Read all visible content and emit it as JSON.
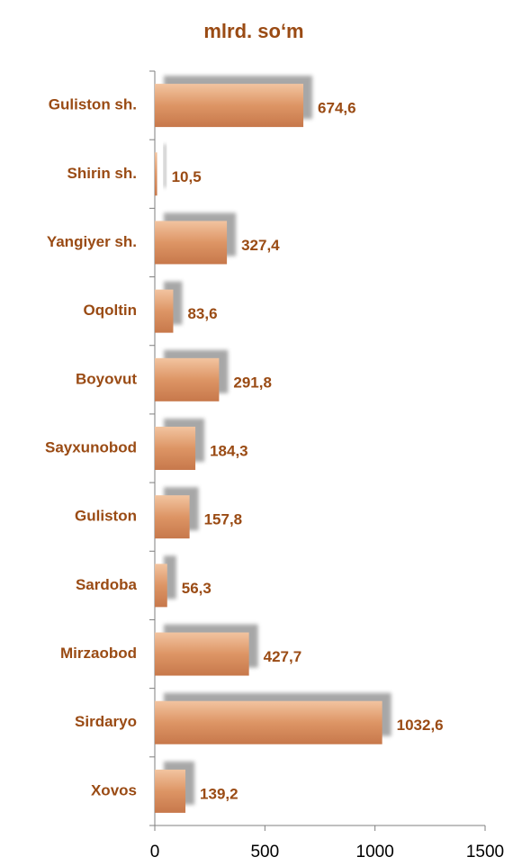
{
  "chart_data": {
    "type": "bar",
    "orientation": "horizontal",
    "title": "mlrd. so‘m",
    "categories": [
      "Guliston sh.",
      "Shirin sh.",
      "Yangiyer sh.",
      "Oqoltin",
      "Boyovut",
      "Sayxunobod",
      "Guliston",
      "Sardoba",
      "Mirzaobod",
      "Sirdaryo",
      "Xovos"
    ],
    "values": [
      674.6,
      10.5,
      327.4,
      83.6,
      291.8,
      184.3,
      157.8,
      56.3,
      427.7,
      1032.6,
      139.2
    ],
    "value_labels": [
      "674,6",
      "10,5",
      "327,4",
      "83,6",
      "291,8",
      "184,3",
      "157,8",
      "56,3",
      "427,7",
      "1032,6",
      "139,2"
    ],
    "color": "#d98c5a",
    "xlim": [
      0,
      1500
    ],
    "xticks": [
      0,
      500,
      1000,
      1500
    ],
    "grid": false
  }
}
